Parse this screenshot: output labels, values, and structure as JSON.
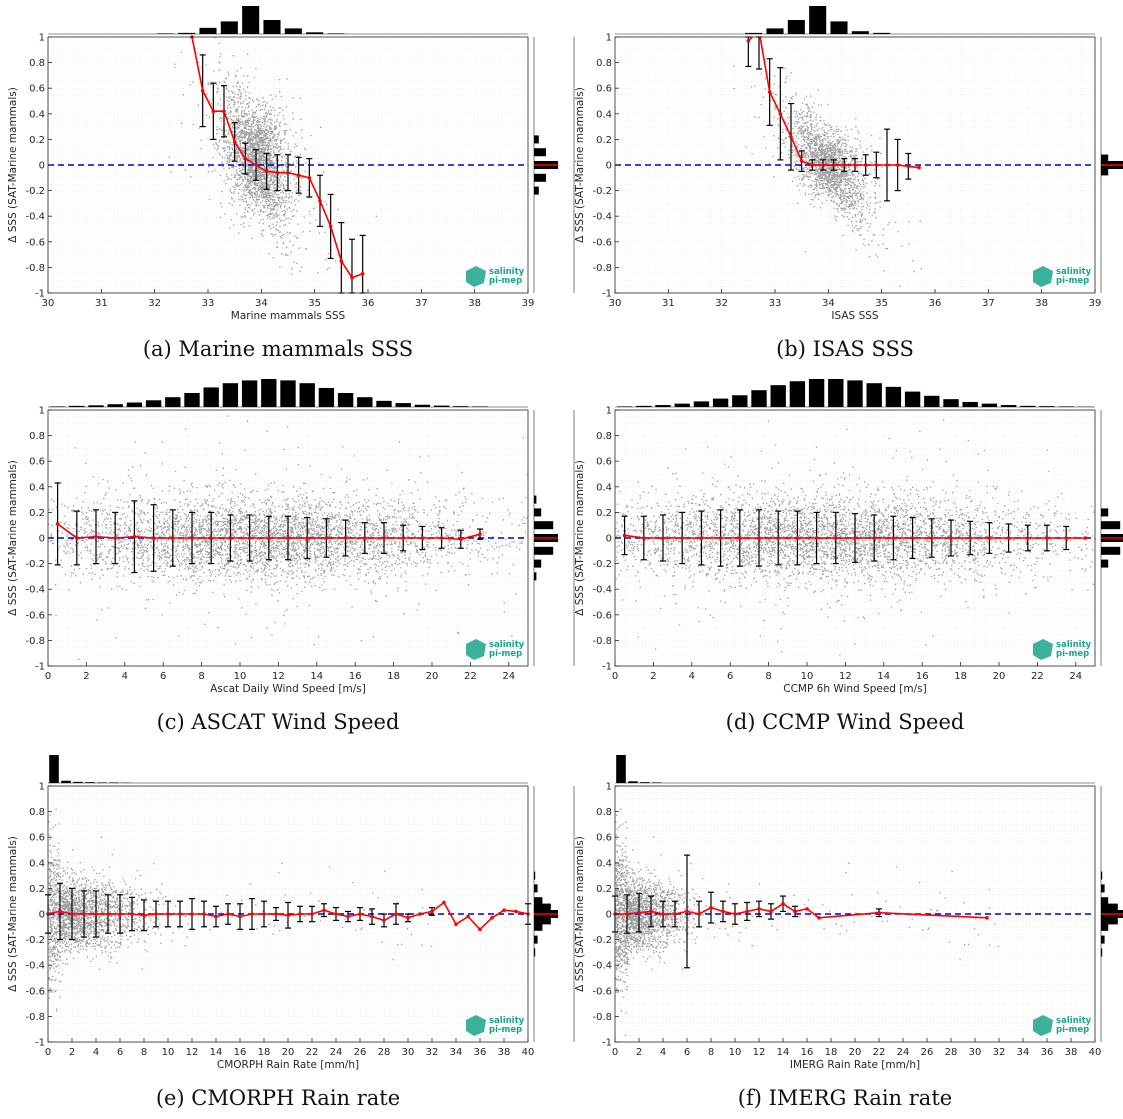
{
  "common": {
    "ylabel": "Δ SSS (SAT-Marine mammals)",
    "ylim": [
      -1,
      1
    ],
    "yticks": [
      1,
      0.8,
      0.6,
      0.4,
      0.2,
      0,
      -0.2,
      -0.4,
      -0.6,
      -0.8,
      -1
    ],
    "logo_text": [
      "salinity",
      "pi-mep"
    ],
    "colors": {
      "scatter": "#7f7f7f",
      "mean_line": "#ff0000",
      "zero_line": "#0000cc",
      "errorbar": "#000000",
      "hist": "#000000",
      "grid": "#e6e6e6",
      "logo": "#1aa58c"
    }
  },
  "chart_data": [
    {
      "id": "a",
      "type": "scatter",
      "caption": "(a) Marine mammals SSS",
      "xlabel": "Marine mammals SSS",
      "xlim": [
        30,
        39
      ],
      "xticks": [
        30,
        31,
        32,
        33,
        34,
        35,
        36,
        37,
        38,
        39
      ],
      "cloud": {
        "shape": "sss",
        "center_x": 33.9,
        "center_y": 0.05,
        "spread_x": 0.3,
        "spread_y": 0.18
      },
      "mean_line": {
        "x": [
          32.7,
          32.9,
          33.1,
          33.3,
          33.5,
          33.7,
          33.9,
          34.1,
          34.3,
          34.5,
          34.7,
          34.9,
          35.1,
          35.3,
          35.5,
          35.7,
          35.9
        ],
        "y": [
          1.0,
          0.58,
          0.42,
          0.42,
          0.18,
          0.05,
          0.0,
          -0.05,
          -0.06,
          -0.06,
          -0.08,
          -0.1,
          -0.28,
          -0.48,
          -0.75,
          -0.88,
          -0.85
        ],
        "err": [
          0,
          0.28,
          0.22,
          0.2,
          0.15,
          0.12,
          0.12,
          0.14,
          0.14,
          0.14,
          0.14,
          0.15,
          0.2,
          0.25,
          0.3,
          0.3,
          0.3
        ]
      },
      "top_hist": {
        "bins_x": [
          32.2,
          32.6,
          33.0,
          33.4,
          33.8,
          34.2,
          34.6,
          35.0,
          35.4
        ],
        "counts": [
          0.02,
          0.04,
          0.22,
          0.45,
          1.0,
          0.5,
          0.2,
          0.06,
          0.02
        ]
      },
      "right_hist": {
        "bins_y": [
          0.2,
          0.1,
          0.0,
          -0.1,
          -0.2
        ],
        "counts": [
          0.2,
          0.5,
          1.0,
          0.5,
          0.2
        ]
      }
    },
    {
      "id": "b",
      "type": "scatter",
      "caption": "(b) ISAS SSS",
      "xlabel": "ISAS SSS",
      "xlim": [
        30,
        39
      ],
      "xticks": [
        30,
        31,
        32,
        33,
        34,
        35,
        36,
        37,
        38,
        39
      ],
      "cloud": {
        "shape": "sss",
        "center_x": 34.0,
        "center_y": 0.0,
        "spread_x": 0.35,
        "spread_y": 0.12
      },
      "mean_line": {
        "x": [
          32.5,
          32.7,
          32.9,
          33.1,
          33.3,
          33.5,
          33.7,
          33.9,
          34.1,
          34.3,
          34.5,
          34.7,
          34.9,
          35.1,
          35.3,
          35.5,
          35.7
        ],
        "y": [
          0.97,
          1.05,
          0.57,
          0.4,
          0.22,
          0.03,
          0.0,
          0.0,
          0.0,
          0.0,
          0.0,
          0.0,
          0.0,
          0.0,
          0.0,
          -0.01,
          -0.02
        ],
        "err": [
          0.2,
          0.3,
          0.26,
          0.36,
          0.26,
          0.08,
          0.04,
          0.04,
          0.04,
          0.05,
          0.05,
          0.08,
          0.1,
          0.28,
          0.2,
          0.1,
          0.0
        ]
      },
      "top_hist": {
        "bins_x": [
          32.6,
          33.0,
          33.4,
          33.8,
          34.2,
          34.6,
          35.0
        ],
        "counts": [
          0.04,
          0.2,
          0.5,
          1.0,
          0.45,
          0.1,
          0.04
        ]
      },
      "right_hist": {
        "bins_y": [
          0.05,
          0.0,
          -0.05
        ],
        "counts": [
          0.3,
          1.0,
          0.3
        ]
      }
    },
    {
      "id": "c",
      "type": "scatter",
      "caption": "(c) ASCAT Wind Speed",
      "xlabel": "Ascat Daily Wind Speed [m/s]",
      "xlim": [
        0,
        25
      ],
      "xticks": [
        0,
        2,
        4,
        6,
        8,
        10,
        12,
        14,
        16,
        18,
        20,
        22,
        24
      ],
      "cloud": {
        "shape": "wind",
        "center_x": 11,
        "center_y": 0.0,
        "spread_x": 5.5,
        "spread_y": 0.16
      },
      "mean_line": {
        "x": [
          0.5,
          1.5,
          2.5,
          3.5,
          4.5,
          5.5,
          6.5,
          7.5,
          8.5,
          9.5,
          10.5,
          11.5,
          12.5,
          13.5,
          14.5,
          15.5,
          16.5,
          17.5,
          18.5,
          19.5,
          20.5,
          21.5,
          22.5
        ],
        "y": [
          0.11,
          0.0,
          0.01,
          0.0,
          0.01,
          0.0,
          0.0,
          0.0,
          0.0,
          0.0,
          0.0,
          0.0,
          0.0,
          0.0,
          0.0,
          0.0,
          0.0,
          0.0,
          0.0,
          0.0,
          0.0,
          -0.01,
          0.03
        ],
        "err": [
          0.32,
          0.21,
          0.21,
          0.2,
          0.28,
          0.26,
          0.22,
          0.2,
          0.2,
          0.18,
          0.18,
          0.17,
          0.17,
          0.16,
          0.15,
          0.14,
          0.12,
          0.12,
          0.1,
          0.09,
          0.08,
          0.07,
          0.04
        ]
      },
      "top_hist": {
        "bins_x": [
          0.5,
          1.5,
          2.5,
          3.5,
          4.5,
          5.5,
          6.5,
          7.5,
          8.5,
          9.5,
          10.5,
          11.5,
          12.5,
          13.5,
          14.5,
          15.5,
          16.5,
          17.5,
          18.5,
          19.5,
          20.5,
          21.5,
          22.5
        ],
        "counts": [
          0.02,
          0.04,
          0.06,
          0.1,
          0.16,
          0.24,
          0.35,
          0.5,
          0.7,
          0.85,
          0.95,
          1.0,
          0.95,
          0.85,
          0.68,
          0.5,
          0.35,
          0.22,
          0.14,
          0.08,
          0.05,
          0.03,
          0.02
        ]
      },
      "right_hist": {
        "bins_y": [
          0.3,
          0.2,
          0.1,
          0.0,
          -0.1,
          -0.2,
          -0.3
        ],
        "counts": [
          0.1,
          0.3,
          0.8,
          1.0,
          0.8,
          0.3,
          0.1
        ]
      }
    },
    {
      "id": "d",
      "type": "scatter",
      "caption": "(d) CCMP Wind Speed",
      "xlabel": "CCMP 6h Wind Speed [m/s]",
      "xlim": [
        0,
        25
      ],
      "xticks": [
        0,
        2,
        4,
        6,
        8,
        10,
        12,
        14,
        16,
        18,
        20,
        22,
        24
      ],
      "cloud": {
        "shape": "wind",
        "center_x": 11,
        "center_y": 0.0,
        "spread_x": 6,
        "spread_y": 0.16
      },
      "mean_line": {
        "x": [
          0.5,
          1.5,
          2.5,
          3.5,
          4.5,
          5.5,
          6.5,
          7.5,
          8.5,
          9.5,
          10.5,
          11.5,
          12.5,
          13.5,
          14.5,
          15.5,
          16.5,
          17.5,
          18.5,
          19.5,
          20.5,
          21.5,
          22.5,
          23.5,
          24.5
        ],
        "y": [
          0.02,
          0.0,
          0.0,
          0.0,
          0.0,
          0.0,
          0.0,
          0.0,
          0.0,
          0.0,
          0.0,
          0.0,
          0.0,
          0.0,
          0.0,
          0.0,
          0.0,
          0.0,
          0.0,
          0.0,
          0.0,
          0.0,
          0.0,
          0.0,
          0.0
        ],
        "err": [
          0.15,
          0.17,
          0.18,
          0.2,
          0.21,
          0.22,
          0.22,
          0.22,
          0.21,
          0.21,
          0.2,
          0.2,
          0.19,
          0.18,
          0.17,
          0.16,
          0.15,
          0.14,
          0.13,
          0.12,
          0.11,
          0.1,
          0.1,
          0.09,
          0.0
        ]
      },
      "top_hist": {
        "bins_x": [
          0.5,
          1.5,
          2.5,
          3.5,
          4.5,
          5.5,
          6.5,
          7.5,
          8.5,
          9.5,
          10.5,
          11.5,
          12.5,
          13.5,
          14.5,
          15.5,
          16.5,
          17.5,
          18.5,
          19.5,
          20.5,
          21.5,
          22.5,
          23.5,
          24.5
        ],
        "counts": [
          0.02,
          0.04,
          0.07,
          0.12,
          0.2,
          0.3,
          0.42,
          0.6,
          0.78,
          0.92,
          1.0,
          1.0,
          0.95,
          0.85,
          0.72,
          0.55,
          0.4,
          0.28,
          0.18,
          0.12,
          0.07,
          0.04,
          0.03,
          0.02,
          0.01
        ]
      },
      "right_hist": {
        "bins_y": [
          0.2,
          0.1,
          0.0,
          -0.1,
          -0.2
        ],
        "counts": [
          0.3,
          0.8,
          1.0,
          0.8,
          0.3
        ]
      }
    },
    {
      "id": "e",
      "type": "scatter",
      "caption": "(e) CMORPH Rain rate",
      "xlabel": "CMORPH Rain Rate [mm/h]",
      "xlim": [
        0,
        40
      ],
      "xticks": [
        0,
        2,
        4,
        6,
        8,
        10,
        12,
        14,
        16,
        18,
        20,
        22,
        24,
        26,
        28,
        30,
        32,
        34,
        36,
        38,
        40
      ],
      "cloud": {
        "shape": "rain",
        "center_x": 0,
        "center_y": 0.0,
        "spread_x": 3.5,
        "spread_y": 0.2
      },
      "mean_line": {
        "x": [
          0,
          1,
          2,
          3,
          4,
          5,
          6,
          7,
          8,
          9,
          10,
          11,
          12,
          13,
          14,
          15,
          16,
          17,
          18,
          19,
          20,
          21,
          22,
          23,
          24,
          25,
          26,
          27,
          28,
          29,
          30,
          31,
          32,
          33,
          34,
          35,
          36,
          37,
          38,
          39,
          40
        ],
        "y": [
          0.0,
          0.02,
          0.0,
          0.0,
          0.0,
          0.0,
          0.0,
          0.0,
          -0.01,
          0.0,
          0.0,
          0.0,
          0.0,
          0.0,
          -0.02,
          0.0,
          -0.02,
          0.0,
          0.0,
          0.0,
          -0.01,
          0.0,
          0.0,
          0.03,
          0.0,
          -0.02,
          0.0,
          -0.02,
          -0.05,
          0.0,
          -0.03,
          0.0,
          0.02,
          0.09,
          -0.08,
          -0.02,
          -0.12,
          -0.03,
          0.03,
          0.02,
          0.0
        ],
        "err": [
          0.15,
          0.22,
          0.2,
          0.18,
          0.18,
          0.15,
          0.15,
          0.13,
          0.12,
          0.1,
          0.1,
          0.1,
          0.12,
          0.1,
          0.08,
          0.08,
          0.1,
          0.12,
          0.1,
          0.05,
          0.1,
          0.06,
          0.06,
          0.05,
          0.05,
          0.04,
          0.05,
          0.06,
          0.05,
          0.08,
          0.03,
          0.0,
          0.03,
          0.0,
          0.0,
          0.0,
          0.0,
          0.0,
          0.0,
          0.0,
          0.08
        ]
      },
      "top_hist": {
        "bins_x": [
          0.5,
          1.5,
          2.5,
          3.5,
          4.5,
          5.5,
          6.5
        ],
        "counts": [
          1.0,
          0.08,
          0.04,
          0.03,
          0.02,
          0.02,
          0.01
        ]
      },
      "right_hist": {
        "bins_y": [
          0.3,
          0.2,
          0.1,
          0.05,
          0.0,
          -0.05,
          -0.1,
          -0.2,
          -0.3
        ],
        "counts": [
          0.05,
          0.15,
          0.35,
          0.7,
          1.0,
          0.7,
          0.35,
          0.15,
          0.05
        ]
      }
    },
    {
      "id": "f",
      "type": "scatter",
      "caption": "(f) IMERG Rain rate",
      "xlabel": "IMERG Rain Rate [mm/h]",
      "xlim": [
        0,
        40
      ],
      "xticks": [
        0,
        2,
        4,
        6,
        8,
        10,
        12,
        14,
        16,
        18,
        20,
        22,
        24,
        26,
        28,
        30,
        32,
        34,
        36,
        38,
        40
      ],
      "cloud": {
        "shape": "rain",
        "center_x": 0,
        "center_y": 0.0,
        "spread_x": 2.5,
        "spread_y": 0.2
      },
      "mean_line": {
        "x": [
          0,
          1,
          2,
          3,
          4,
          5,
          6,
          7,
          8,
          9,
          10,
          11,
          12,
          13,
          14,
          15,
          16,
          17,
          22,
          31
        ],
        "y": [
          0.0,
          0.0,
          0.01,
          0.02,
          0.0,
          0.0,
          0.02,
          0.0,
          0.05,
          0.02,
          0.0,
          0.02,
          0.04,
          0.02,
          0.08,
          0.02,
          0.04,
          -0.03,
          0.01,
          -0.03
        ],
        "err": [
          0.14,
          0.15,
          0.15,
          0.12,
          0.1,
          0.1,
          0.44,
          0.1,
          0.12,
          0.08,
          0.08,
          0.07,
          0.06,
          0.06,
          0.06,
          0.04,
          0.0,
          0.0,
          0.03,
          0.0
        ]
      },
      "top_hist": {
        "bins_x": [
          0.5,
          1.5,
          2.5,
          3.5
        ],
        "counts": [
          1.0,
          0.06,
          0.03,
          0.02
        ]
      },
      "right_hist": {
        "bins_y": [
          0.3,
          0.2,
          0.1,
          0.05,
          0.0,
          -0.05,
          -0.1,
          -0.2,
          -0.3
        ],
        "counts": [
          0.05,
          0.15,
          0.3,
          0.7,
          1.0,
          0.7,
          0.3,
          0.15,
          0.05
        ]
      }
    }
  ]
}
